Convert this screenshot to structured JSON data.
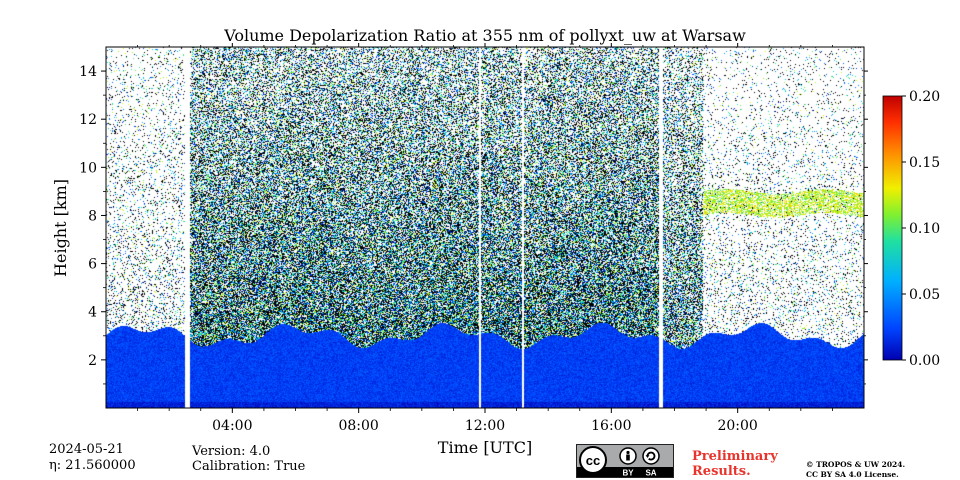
{
  "chart_data": {
    "type": "heatmap",
    "title": "Volume Depolarization Ratio at 355 nm of pollyxt_uw at Warsaw",
    "xlabel": "Time [UTC]",
    "ylabel": "Height [km]",
    "x_unit": "hours UTC",
    "xlim": [
      0,
      24
    ],
    "ylim": [
      0,
      15
    ],
    "x_ticks": [
      {
        "value": 4,
        "label": "04:00"
      },
      {
        "value": 8,
        "label": "08:00"
      },
      {
        "value": 12,
        "label": "12:00"
      },
      {
        "value": 16,
        "label": "16:00"
      },
      {
        "value": 20,
        "label": "20:00"
      }
    ],
    "y_ticks": [
      {
        "value": 2,
        "label": "2"
      },
      {
        "value": 4,
        "label": "4"
      },
      {
        "value": 6,
        "label": "6"
      },
      {
        "value": 8,
        "label": "8"
      },
      {
        "value": 10,
        "label": "10"
      },
      {
        "value": 12,
        "label": "12"
      },
      {
        "value": 14,
        "label": "14"
      }
    ],
    "colorbar": {
      "min": 0.0,
      "max": 0.2,
      "colormap": "jet",
      "ticks": [
        {
          "value": 0.0,
          "label": "0.00"
        },
        {
          "value": 0.05,
          "label": "0.05"
        },
        {
          "value": 0.1,
          "label": "0.10"
        },
        {
          "value": 0.15,
          "label": "0.15"
        },
        {
          "value": 0.2,
          "label": "0.20"
        }
      ]
    },
    "data_gaps_hours": [
      [
        2.5,
        2.65
      ],
      [
        17.5,
        17.65
      ]
    ],
    "features": {
      "boundary_layer_top_km": 3.0,
      "elevated_layer_km": [
        8.0,
        9.0
      ],
      "elevated_layer_hours": [
        18.9,
        24.0
      ],
      "elevated_layer_depol": 0.12
    }
  },
  "footer": {
    "date": "2024-05-21",
    "eta": "η: 21.560000",
    "version": "Version: 4.0",
    "calibration": "Calibration: True",
    "preliminary_line1": "Preliminary",
    "preliminary_line2": "Results.",
    "copyright_line1": "© TROPOS & UW 2024.",
    "copyright_line2": "CC BY SA 4.0 License.",
    "license_badge": {
      "cc": "cc",
      "by": "BY",
      "sa": "SA"
    }
  }
}
